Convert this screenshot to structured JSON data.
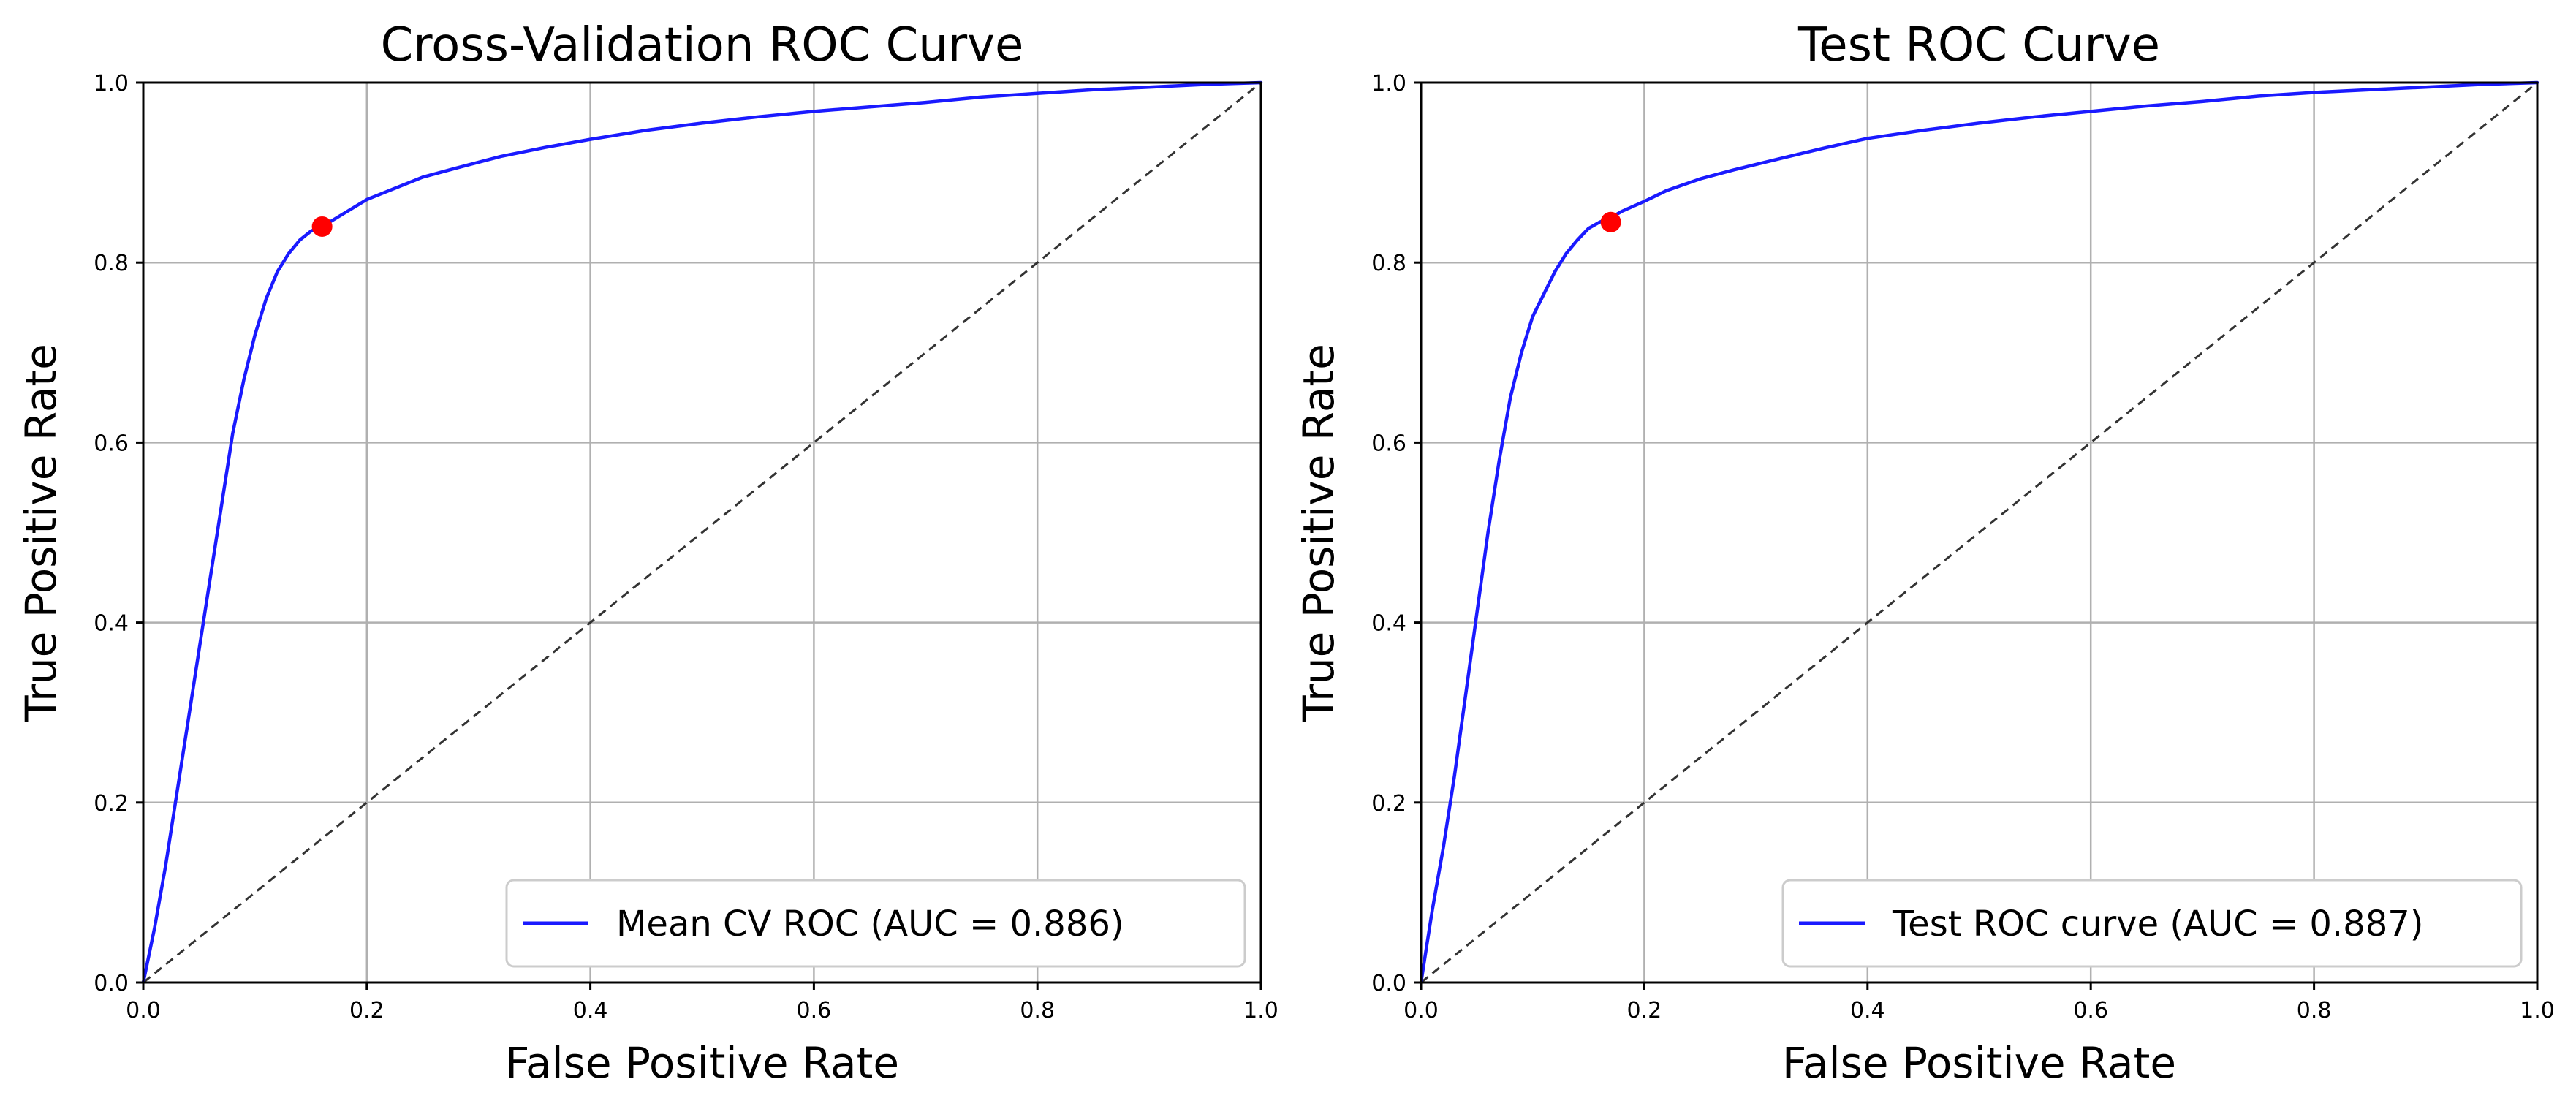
{
  "chart_data": [
    {
      "type": "line",
      "title": "Cross-Validation ROC Curve",
      "xlabel": "False Positive Rate",
      "ylabel": "True Positive Rate",
      "xlim": [
        0.0,
        1.0
      ],
      "ylim": [
        0.0,
        1.0
      ],
      "xticks": [
        "0.0",
        "0.2",
        "0.4",
        "0.6",
        "0.8",
        "1.0"
      ],
      "yticks": [
        "0.0",
        "0.2",
        "0.4",
        "0.6",
        "0.8",
        "1.0"
      ],
      "grid": true,
      "legend_position": "lower-right",
      "legend": "Mean CV ROC (AUC = 0.886)",
      "series": [
        {
          "name": "Mean CV ROC (AUC = 0.886)",
          "color": "#1a1aff",
          "x": [
            0.0,
            0.01,
            0.02,
            0.03,
            0.04,
            0.05,
            0.06,
            0.07,
            0.08,
            0.09,
            0.1,
            0.11,
            0.12,
            0.13,
            0.14,
            0.15,
            0.16,
            0.18,
            0.2,
            0.22,
            0.25,
            0.28,
            0.32,
            0.36,
            0.4,
            0.45,
            0.5,
            0.55,
            0.6,
            0.65,
            0.7,
            0.75,
            0.8,
            0.85,
            0.9,
            0.95,
            1.0
          ],
          "y": [
            0.0,
            0.06,
            0.13,
            0.21,
            0.29,
            0.37,
            0.45,
            0.53,
            0.61,
            0.67,
            0.72,
            0.76,
            0.79,
            0.81,
            0.825,
            0.835,
            0.84,
            0.855,
            0.87,
            0.88,
            0.895,
            0.905,
            0.918,
            0.928,
            0.937,
            0.947,
            0.955,
            0.962,
            0.968,
            0.973,
            0.978,
            0.984,
            0.988,
            0.992,
            0.995,
            0.998,
            1.0
          ]
        }
      ],
      "operating_point": {
        "x": 0.16,
        "y": 0.84,
        "color": "#ff0000"
      },
      "chance_line": {
        "x": [
          0,
          1
        ],
        "y": [
          0,
          1
        ],
        "color": "#333333"
      }
    },
    {
      "type": "line",
      "title": "Test ROC Curve",
      "xlabel": "False Positive Rate",
      "ylabel": "True Positive Rate",
      "xlim": [
        0.0,
        1.0
      ],
      "ylim": [
        0.0,
        1.0
      ],
      "xticks": [
        "0.0",
        "0.2",
        "0.4",
        "0.6",
        "0.8",
        "1.0"
      ],
      "yticks": [
        "0.0",
        "0.2",
        "0.4",
        "0.6",
        "0.8",
        "1.0"
      ],
      "grid": true,
      "legend_position": "lower-right",
      "legend": "Test ROC curve (AUC = 0.887)",
      "series": [
        {
          "name": "Test ROC curve (AUC = 0.887)",
          "color": "#1a1aff",
          "x": [
            0.0,
            0.005,
            0.01,
            0.02,
            0.03,
            0.04,
            0.05,
            0.06,
            0.07,
            0.08,
            0.09,
            0.1,
            0.11,
            0.12,
            0.13,
            0.14,
            0.15,
            0.16,
            0.17,
            0.18,
            0.2,
            0.22,
            0.25,
            0.28,
            0.32,
            0.36,
            0.4,
            0.45,
            0.5,
            0.55,
            0.6,
            0.65,
            0.7,
            0.75,
            0.8,
            0.85,
            0.9,
            0.95,
            1.0
          ],
          "y": [
            0.0,
            0.04,
            0.08,
            0.15,
            0.23,
            0.32,
            0.41,
            0.5,
            0.58,
            0.65,
            0.7,
            0.74,
            0.765,
            0.79,
            0.81,
            0.825,
            0.838,
            0.845,
            0.85,
            0.857,
            0.868,
            0.88,
            0.893,
            0.903,
            0.915,
            0.927,
            0.938,
            0.947,
            0.955,
            0.962,
            0.968,
            0.974,
            0.979,
            0.985,
            0.989,
            0.992,
            0.995,
            0.998,
            1.0
          ]
        }
      ],
      "operating_point": {
        "x": 0.17,
        "y": 0.845,
        "color": "#ff0000"
      },
      "chance_line": {
        "x": [
          0,
          1
        ],
        "y": [
          0,
          1
        ],
        "color": "#333333"
      }
    }
  ]
}
